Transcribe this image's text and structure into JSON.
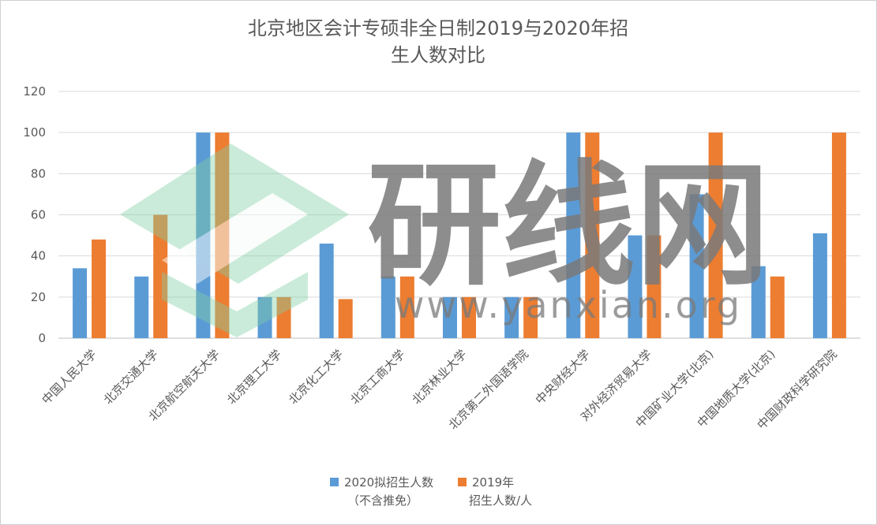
{
  "chart_data": {
    "type": "bar",
    "title_lines": [
      "北京地区会计专硕非全日制2019与2020年招",
      "生人数对比"
    ],
    "categories": [
      "中国人民大学",
      "北京交通大学",
      "北京航空航天大学",
      "北京理工大学",
      "北京化工大学",
      "北京工商大学",
      "北京林业大学",
      "北京第二外国语学院",
      "中央财经大学",
      "对外经济贸易大学",
      "中国矿业大学(北京)",
      "中国地质大学(北京)",
      "中国财政科学研究院"
    ],
    "series": [
      {
        "name_lines": [
          "2020拟招生人数",
          "（不含推免）"
        ],
        "color": "#5B9BD5",
        "values": [
          34,
          30,
          100,
          20,
          46,
          30,
          20,
          20,
          100,
          50,
          70,
          35,
          51
        ]
      },
      {
        "name_lines": [
          "2019年",
          "招生人数/人"
        ],
        "color": "#ED7D31",
        "values": [
          48,
          60,
          100,
          20,
          19,
          30,
          20,
          20,
          100,
          50,
          100,
          30,
          100
        ]
      }
    ],
    "ylim": [
      0,
      120
    ],
    "yticks": [
      0,
      20,
      40,
      60,
      80,
      100,
      120
    ],
    "grid": true,
    "legend_position": "bottom",
    "watermark": {
      "text": "研线网",
      "url": "www.yanxian.org"
    }
  }
}
